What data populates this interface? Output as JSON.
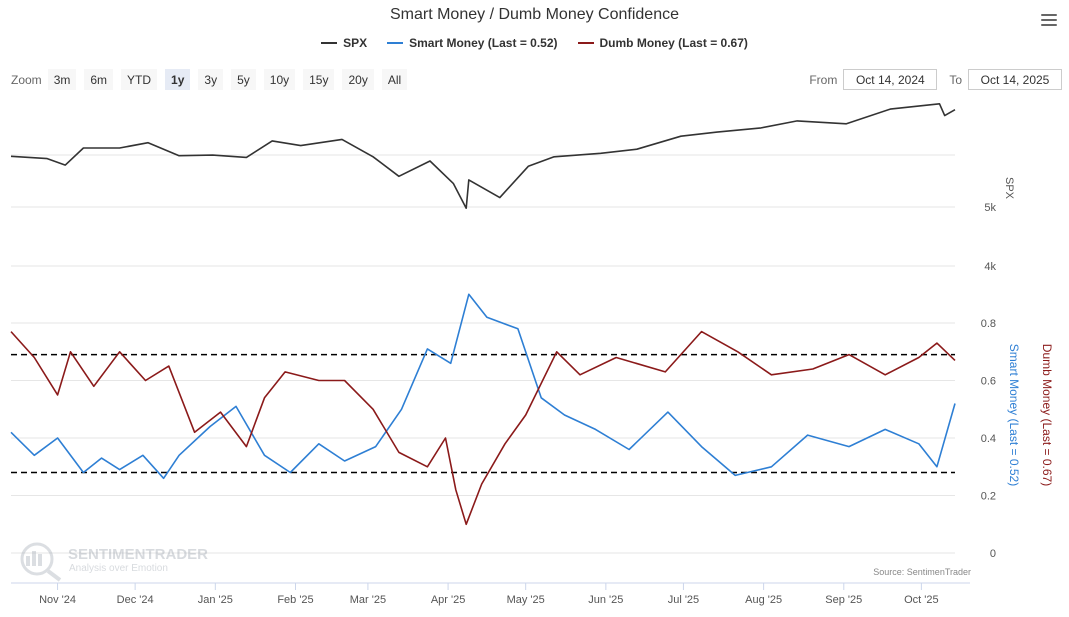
{
  "title": "Smart Money / Dumb Money Confidence",
  "legend": [
    {
      "key": "spx",
      "label": "SPX",
      "color": "#333333"
    },
    {
      "key": "smart",
      "label": "Smart Money (Last = 0.52)",
      "color": "#2e7fd4"
    },
    {
      "key": "dumb",
      "label": "Dumb Money (Last = 0.67)",
      "color": "#8b1a1a"
    }
  ],
  "zoom": {
    "label": "Zoom",
    "buttons": [
      "3m",
      "6m",
      "YTD",
      "1y",
      "3y",
      "5y",
      "10y",
      "15y",
      "20y",
      "All"
    ],
    "active": "1y"
  },
  "range": {
    "from_label": "From",
    "from_value": "Oct 14, 2024",
    "to_label": "To",
    "to_value": "Oct 14, 2025"
  },
  "credit": "Source: SentimenTrader",
  "watermark": {
    "name": "SENTIMENTRADER",
    "tagline": "Analysis over Emotion"
  },
  "chart_data": {
    "type": "line",
    "x_tick_labels": [
      "Nov '24",
      "Dec '24",
      "Jan '25",
      "Feb '25",
      "Mar '25",
      "Apr '25",
      "May '25",
      "Jun '25",
      "Jul '25",
      "Aug '25",
      "Sep '25",
      "Oct '25"
    ],
    "x_tick_dates": [
      "2024-11-01",
      "2024-12-01",
      "2025-01-01",
      "2025-02-01",
      "2025-03-01",
      "2025-04-01",
      "2025-05-01",
      "2025-06-01",
      "2025-07-01",
      "2025-08-01",
      "2025-09-01",
      "2025-10-01"
    ],
    "x_range": [
      "2024-10-14",
      "2025-10-14"
    ],
    "spx_axis": {
      "label": "SPX",
      "ticks": [
        "4k",
        "5k"
      ],
      "tick_values": [
        4000,
        5000
      ]
    },
    "confidence_axis": {
      "ticks": [
        "0",
        "0.2",
        "0.4",
        "0.6",
        "0.8"
      ],
      "tick_values": [
        0,
        0.2,
        0.4,
        0.6,
        0.8
      ],
      "range": [
        0,
        0.8
      ]
    },
    "thresholds": [
      0.69,
      0.28
    ],
    "series": [
      {
        "name": "SPX",
        "dates": [
          "2024-10-14",
          "2024-10-28",
          "2024-11-04",
          "2024-11-11",
          "2024-11-25",
          "2024-12-06",
          "2024-12-18",
          "2024-12-31",
          "2025-01-13",
          "2025-01-23",
          "2025-02-03",
          "2025-02-19",
          "2025-03-03",
          "2025-03-13",
          "2025-03-25",
          "2025-04-03",
          "2025-04-08",
          "2025-04-09",
          "2025-04-21",
          "2025-05-02",
          "2025-05-12",
          "2025-05-30",
          "2025-06-13",
          "2025-06-30",
          "2025-07-14",
          "2025-07-31",
          "2025-08-14",
          "2025-09-02",
          "2025-09-19",
          "2025-10-08",
          "2025-10-10",
          "2025-10-14"
        ],
        "values": [
          5860,
          5820,
          5710,
          6000,
          6000,
          6090,
          5870,
          5880,
          5840,
          6120,
          6040,
          6145,
          5850,
          5520,
          5780,
          5400,
          4980,
          5460,
          5160,
          5690,
          5850,
          5910,
          5980,
          6200,
          6270,
          6340,
          6460,
          6410,
          6660,
          6750,
          6550,
          6650
        ]
      },
      {
        "name": "Smart Money",
        "dates": [
          "2024-10-14",
          "2024-10-23",
          "2024-11-01",
          "2024-11-11",
          "2024-11-18",
          "2024-11-25",
          "2024-12-04",
          "2024-12-12",
          "2024-12-18",
          "2024-12-30",
          "2025-01-09",
          "2025-01-20",
          "2025-01-30",
          "2025-02-10",
          "2025-02-20",
          "2025-03-04",
          "2025-03-14",
          "2025-03-24",
          "2025-04-02",
          "2025-04-09",
          "2025-04-16",
          "2025-04-28",
          "2025-05-07",
          "2025-05-16",
          "2025-05-28",
          "2025-06-10",
          "2025-06-25",
          "2025-07-08",
          "2025-07-21",
          "2025-08-04",
          "2025-08-18",
          "2025-09-03",
          "2025-09-17",
          "2025-09-30",
          "2025-10-07",
          "2025-10-14"
        ],
        "values": [
          0.42,
          0.34,
          0.4,
          0.28,
          0.33,
          0.29,
          0.34,
          0.26,
          0.34,
          0.44,
          0.51,
          0.34,
          0.28,
          0.38,
          0.32,
          0.37,
          0.5,
          0.71,
          0.66,
          0.9,
          0.82,
          0.78,
          0.54,
          0.48,
          0.43,
          0.36,
          0.49,
          0.37,
          0.27,
          0.3,
          0.41,
          0.37,
          0.43,
          0.38,
          0.3,
          0.52
        ]
      },
      {
        "name": "Dumb Money",
        "dates": [
          "2024-10-14",
          "2024-10-23",
          "2024-11-01",
          "2024-11-06",
          "2024-11-15",
          "2024-11-25",
          "2024-12-05",
          "2024-12-14",
          "2024-12-24",
          "2025-01-03",
          "2025-01-13",
          "2025-01-20",
          "2025-01-28",
          "2025-02-10",
          "2025-02-20",
          "2025-03-03",
          "2025-03-13",
          "2025-03-24",
          "2025-03-31",
          "2025-04-04",
          "2025-04-08",
          "2025-04-14",
          "2025-04-23",
          "2025-05-01",
          "2025-05-13",
          "2025-05-22",
          "2025-06-05",
          "2025-06-24",
          "2025-07-08",
          "2025-07-22",
          "2025-08-04",
          "2025-08-20",
          "2025-09-03",
          "2025-09-17",
          "2025-09-30",
          "2025-10-07",
          "2025-10-14"
        ],
        "values": [
          0.77,
          0.68,
          0.55,
          0.7,
          0.58,
          0.7,
          0.6,
          0.65,
          0.42,
          0.49,
          0.37,
          0.54,
          0.63,
          0.6,
          0.6,
          0.5,
          0.35,
          0.3,
          0.4,
          0.22,
          0.1,
          0.24,
          0.38,
          0.48,
          0.7,
          0.62,
          0.68,
          0.63,
          0.77,
          0.7,
          0.62,
          0.64,
          0.69,
          0.62,
          0.68,
          0.73,
          0.67
        ]
      }
    ]
  }
}
